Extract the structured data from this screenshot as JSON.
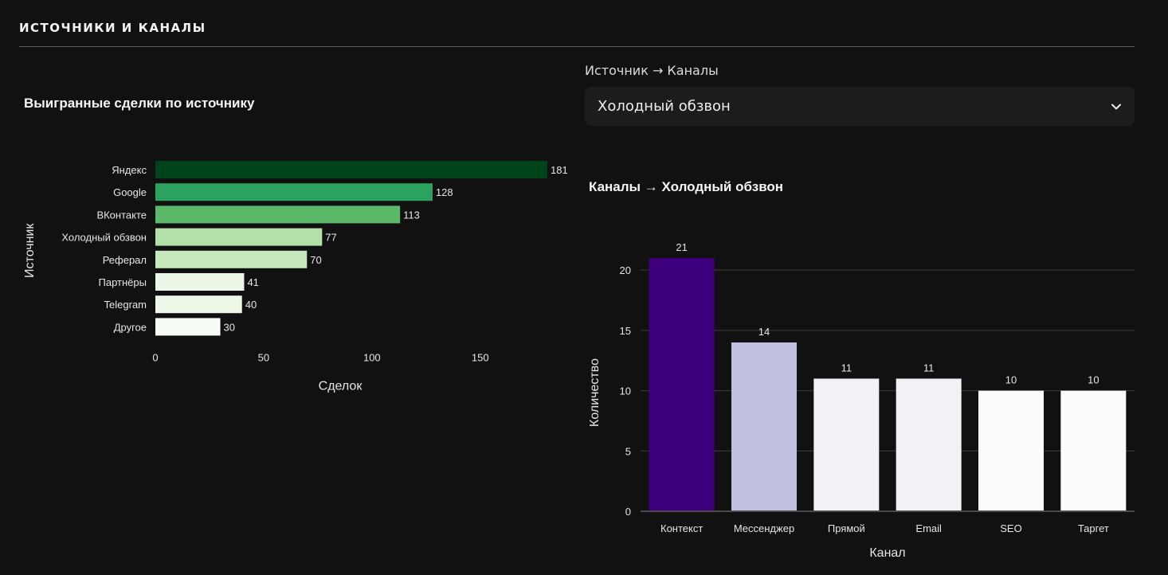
{
  "section": {
    "title": "ИСТОЧНИКИ И КАНАЛЫ"
  },
  "left_chart": {
    "title": "Выигранные сделки по источнику"
  },
  "selector": {
    "label": "Источник → Каналы",
    "value": "Холодный обзвон",
    "icon": "chevron-down-icon"
  },
  "right_chart": {
    "title": "Каналы → Холодный обзвон"
  },
  "chart_data": [
    {
      "type": "bar",
      "orientation": "horizontal",
      "title": "Выигранные сделки по источнику",
      "categories": [
        "Яндекс",
        "Google",
        "ВКонтакте",
        "Холодный обзвон",
        "Реферал",
        "Партнёры",
        "Telegram",
        "Другое"
      ],
      "values": [
        181,
        128,
        113,
        77,
        70,
        41,
        40,
        30
      ],
      "colors": [
        "#00441b",
        "#2ca25f",
        "#5cb96a",
        "#b3e0a8",
        "#c5e8bd",
        "#eaf6e6",
        "#ecf7e8",
        "#f7fcf5"
      ],
      "xlabel": "Сделок",
      "ylabel": "Источник",
      "xlim": [
        0,
        181
      ],
      "xticks": [
        0,
        50,
        100,
        150
      ],
      "grid": false,
      "data_labels": true
    },
    {
      "type": "bar",
      "orientation": "vertical",
      "title": "Каналы → Холодный обзвон",
      "categories": [
        "Контекст",
        "Мессенджер",
        "Прямой",
        "Email",
        "SEO",
        "Таргет"
      ],
      "values": [
        21,
        14,
        11,
        11,
        10,
        10
      ],
      "colors": [
        "#3f007d",
        "#c0c0e0",
        "#f3f1f8",
        "#f3f1f8",
        "#fcfbfd",
        "#fcfbfd"
      ],
      "xlabel": "Канал",
      "ylabel": "Количество",
      "ylim": [
        0,
        21
      ],
      "yticks": [
        0,
        5,
        10,
        15,
        20
      ],
      "grid": true,
      "data_labels": true
    }
  ]
}
